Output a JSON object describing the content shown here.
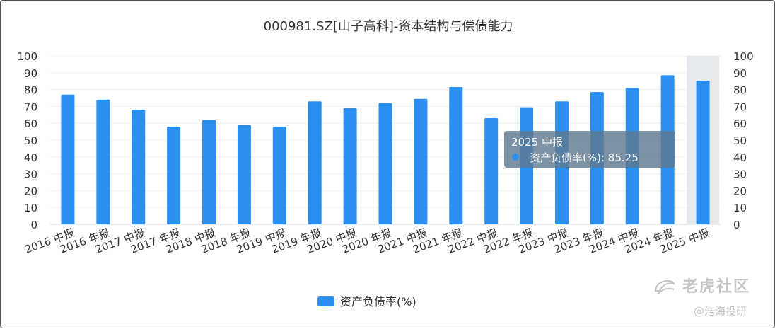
{
  "chart_data": {
    "type": "bar",
    "title": "000981.SZ[山子高科]-资本结构与偿债能力",
    "categories": [
      "2016 中报",
      "2016 年报",
      "2017 中报",
      "2017 年报",
      "2018 中报",
      "2018 年报",
      "2019 中报",
      "2019 年报",
      "2020 中报",
      "2020 年报",
      "2021 中报",
      "2021 年报",
      "2022 中报",
      "2022 年报",
      "2023 中报",
      "2023 年报",
      "2024 中报",
      "2024 年报",
      "2025 中报"
    ],
    "series": [
      {
        "name": "资产负债率(%)",
        "color": "#2b8ff0",
        "values": [
          77,
          74,
          68,
          58,
          62,
          59,
          58,
          73,
          69,
          72,
          74.5,
          81.5,
          63,
          69.5,
          73,
          78.5,
          81,
          88.5,
          85.25
        ]
      }
    ],
    "ylim": [
      0,
      100
    ],
    "y_ticks": [
      0,
      10,
      20,
      30,
      40,
      50,
      60,
      70,
      80,
      90,
      100
    ],
    "y_axes": "left-and-right",
    "grid": true,
    "legend_position": "bottom-center",
    "highlighted_category": "2025 中报",
    "tooltip": {
      "title": "2025 中报",
      "series_name": "资产负债率(%)",
      "separator": ": ",
      "value": "85.25"
    }
  },
  "watermark": {
    "logo_text": "老虎社区",
    "author_text": "@浩海投研"
  }
}
